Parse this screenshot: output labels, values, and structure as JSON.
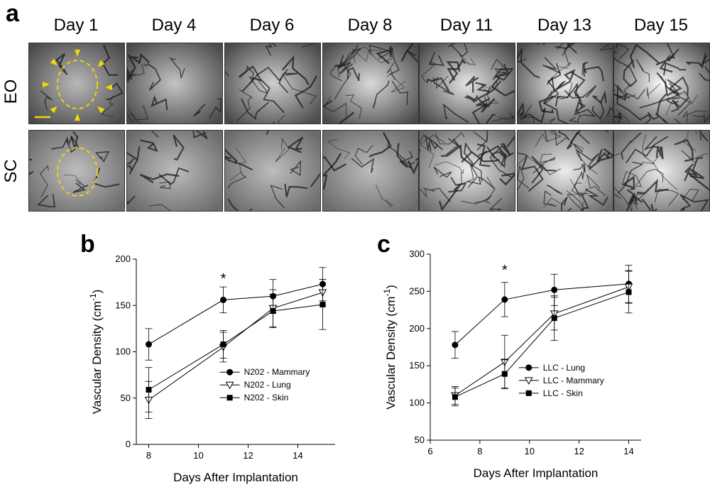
{
  "panels": {
    "a": "a",
    "b": "b",
    "c": "c"
  },
  "image_grid": {
    "days": [
      "Day 1",
      "Day 4",
      "Day 6",
      "Day 8",
      "Day 11",
      "Day 13",
      "Day 15"
    ],
    "rows": [
      "EO",
      "SC"
    ],
    "overlay_color": "#f5d800"
  },
  "chart_data": [
    {
      "type": "line",
      "panel": "b",
      "xlabel": "Days After Implantation",
      "ylabel": "Vascular Density (cm",
      "ylabel_sup": "-1",
      "ylabel_end": ")",
      "xlim": [
        7.5,
        15.5
      ],
      "ylim": [
        0,
        200
      ],
      "xticks": [
        8,
        10,
        12,
        14
      ],
      "yticks": [
        0,
        50,
        100,
        150,
        200
      ],
      "annotation": {
        "text": "*",
        "x": 11,
        "y": 180
      },
      "legend_position": "lower-right",
      "series": [
        {
          "name": "N202 - Mammary",
          "marker": "circle",
          "x": [
            8,
            11,
            13,
            15
          ],
          "y": [
            108,
            156,
            160,
            173
          ],
          "err": [
            17,
            14,
            18,
            18
          ]
        },
        {
          "name": "N202 - Lung",
          "marker": "triangle-down",
          "x": [
            8,
            11,
            13,
            15
          ],
          "y": [
            48,
            105,
            147,
            164
          ],
          "err": [
            20,
            16,
            20,
            14
          ]
        },
        {
          "name": "N202 - Skin",
          "marker": "square",
          "x": [
            8,
            11,
            13,
            15
          ],
          "y": [
            59,
            108,
            144,
            151
          ],
          "err": [
            24,
            15,
            18,
            27
          ]
        }
      ]
    },
    {
      "type": "line",
      "panel": "c",
      "xlabel": "Days After Implantation",
      "ylabel": "Vascular Density (cm",
      "ylabel_sup": "-1",
      "ylabel_end": ")",
      "xlim": [
        6,
        14.5
      ],
      "ylim": [
        50,
        300
      ],
      "xticks": [
        6,
        8,
        10,
        12,
        14
      ],
      "yticks": [
        50,
        100,
        150,
        200,
        250,
        300
      ],
      "annotation": {
        "text": "*",
        "x": 9,
        "y": 280
      },
      "legend_position": "lower-right",
      "series": [
        {
          "name": "LLC - Lung",
          "marker": "circle",
          "x": [
            7,
            9,
            11,
            14
          ],
          "y": [
            178,
            239,
            252,
            260
          ],
          "err": [
            18,
            23,
            21,
            25
          ]
        },
        {
          "name": "LLC - Mammary",
          "marker": "triangle-down",
          "x": [
            7,
            9,
            11,
            14
          ],
          "y": [
            110,
            155,
            220,
            256
          ],
          "err": [
            12,
            36,
            22,
            22
          ]
        },
        {
          "name": "LLC - Skin",
          "marker": "square",
          "x": [
            7,
            9,
            11,
            14
          ],
          "y": [
            108,
            139,
            214,
            249
          ],
          "err": [
            12,
            19,
            30,
            28
          ]
        }
      ]
    }
  ]
}
